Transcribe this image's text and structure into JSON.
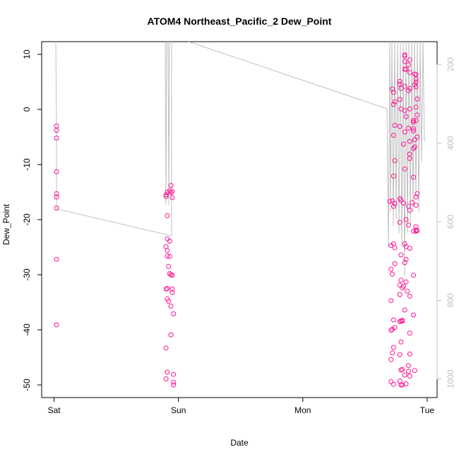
{
  "chart_data": {
    "type": "scatter",
    "title": "ATOM4 Northeast_Pacific_2 Dew_Point",
    "xlabel": "Date",
    "ylabel": "Dew_Point",
    "x_ticks": [
      {
        "label": "Sat",
        "value": 0
      },
      {
        "label": "Sun",
        "value": 1
      },
      {
        "label": "Mon",
        "value": 2
      },
      {
        "label": "Tue",
        "value": 3
      }
    ],
    "y_ticks": [
      10,
      0,
      -10,
      -20,
      -30,
      -40,
      -50
    ],
    "y_right_ticks": [
      200,
      400,
      600,
      800,
      1000
    ],
    "xlim": [
      -0.1,
      3.08
    ],
    "ylim": [
      -52.3,
      12.3
    ],
    "y_right_lim": [
      1047,
      142
    ],
    "point_color": "#ff1493",
    "line_color": "#c0c0c0",
    "grid": false,
    "series": [
      {
        "values": [
          [
            0.02,
            -3.0
          ],
          [
            0.02,
            -3.8
          ],
          [
            0.02,
            -5.2
          ],
          [
            0.02,
            -11.3
          ],
          [
            0.02,
            -15.3
          ],
          [
            0.02,
            -15.9
          ],
          [
            0.02,
            -17.9
          ],
          [
            0.02,
            -27.2
          ],
          [
            0.02,
            -39.1
          ],
          [
            0.9,
            -15.5
          ],
          [
            0.9,
            -15.8
          ],
          [
            0.91,
            -15.0
          ],
          [
            0.93,
            -14.8
          ],
          [
            0.94,
            -13.8
          ],
          [
            0.94,
            -15.1
          ],
          [
            0.95,
            -14.9
          ],
          [
            0.95,
            -16.0
          ],
          [
            0.91,
            -19.3
          ],
          [
            0.91,
            -23.5
          ],
          [
            0.9,
            -24.9
          ],
          [
            0.91,
            -25.6
          ],
          [
            0.93,
            -23.9
          ],
          [
            0.91,
            -26.6
          ],
          [
            0.93,
            -26.7
          ],
          [
            0.92,
            -28.5
          ],
          [
            0.93,
            -29.8
          ],
          [
            0.94,
            -30.0
          ],
          [
            0.95,
            -30.1
          ],
          [
            0.9,
            -32.6
          ],
          [
            0.91,
            -32.5
          ],
          [
            0.95,
            -32.6
          ],
          [
            0.95,
            -33.2
          ],
          [
            0.91,
            -34.4
          ],
          [
            0.92,
            -34.8
          ],
          [
            0.94,
            -35.7
          ],
          [
            0.96,
            -37.1
          ],
          [
            0.94,
            -40.9
          ],
          [
            0.9,
            -43.3
          ],
          [
            0.91,
            -47.7
          ],
          [
            0.96,
            -48.1
          ],
          [
            0.9,
            -48.9
          ],
          [
            0.96,
            -49.5
          ],
          [
            0.96,
            -50.0
          ],
          [
            2.72,
            3.7
          ],
          [
            2.73,
            3.1
          ],
          [
            2.74,
            1.4
          ],
          [
            2.73,
            0.9
          ],
          [
            2.74,
            -2.9
          ],
          [
            2.73,
            -4.7
          ],
          [
            2.74,
            -9.3
          ],
          [
            2.73,
            -12.1
          ],
          [
            2.72,
            -16.6
          ],
          [
            2.73,
            -17.6
          ],
          [
            2.74,
            -17.1
          ],
          [
            2.7,
            -16.7
          ],
          [
            2.71,
            -24.7
          ],
          [
            2.73,
            -24.4
          ],
          [
            2.74,
            -25.1
          ],
          [
            2.71,
            -29.0
          ],
          [
            2.72,
            -29.9
          ],
          [
            2.74,
            -28.0
          ],
          [
            2.71,
            -34.7
          ],
          [
            2.71,
            -40.1
          ],
          [
            2.72,
            -39.9
          ],
          [
            2.73,
            -38.2
          ],
          [
            2.74,
            -39.6
          ],
          [
            2.72,
            -44.2
          ],
          [
            2.73,
            -43.2
          ],
          [
            2.71,
            -45.4
          ],
          [
            2.71,
            -49.4
          ],
          [
            2.73,
            -49.9
          ],
          [
            2.78,
            5.1
          ],
          [
            2.78,
            4.6
          ],
          [
            2.79,
            3.8
          ],
          [
            2.78,
            1.8
          ],
          [
            2.79,
            0.1
          ],
          [
            2.78,
            -3.1
          ],
          [
            2.78,
            -16.2
          ],
          [
            2.79,
            -16.5
          ],
          [
            2.78,
            -20.5
          ],
          [
            2.79,
            -26.4
          ],
          [
            2.78,
            -31.9
          ],
          [
            2.79,
            -31.0
          ],
          [
            2.8,
            -32.4
          ],
          [
            2.78,
            -33.6
          ],
          [
            2.8,
            -38.3
          ],
          [
            2.79,
            -38.4
          ],
          [
            2.78,
            -38.5
          ],
          [
            2.8,
            -38.4
          ],
          [
            2.79,
            -42.2
          ],
          [
            2.78,
            -44.5
          ],
          [
            2.8,
            -47.2
          ],
          [
            2.79,
            -47.3
          ],
          [
            2.78,
            -49.3
          ],
          [
            2.79,
            -50.0
          ],
          [
            2.8,
            -50.0
          ],
          [
            2.82,
            9.9
          ],
          [
            2.82,
            9.7
          ],
          [
            2.82,
            8.7
          ],
          [
            2.82,
            7.3
          ],
          [
            2.82,
            4.2
          ],
          [
            2.83,
            7.3
          ],
          [
            2.82,
            -0.2
          ],
          [
            2.83,
            -1.3
          ],
          [
            2.82,
            -4.1
          ],
          [
            2.81,
            -6.3
          ],
          [
            2.82,
            -10.8
          ],
          [
            2.81,
            -17.0
          ],
          [
            2.83,
            -20.0
          ],
          [
            2.82,
            -24.4
          ],
          [
            2.83,
            -24.9
          ],
          [
            2.83,
            -27.2
          ],
          [
            2.82,
            -27.8
          ],
          [
            2.83,
            -31.3
          ],
          [
            2.81,
            -32.1
          ],
          [
            2.82,
            -36.4
          ],
          [
            2.84,
            -33.0
          ],
          [
            2.82,
            -48.2
          ],
          [
            2.83,
            -49.8
          ],
          [
            2.86,
            9.0
          ],
          [
            2.85,
            8.1
          ],
          [
            2.86,
            6.7
          ],
          [
            2.86,
            3.8
          ],
          [
            2.85,
            3.4
          ],
          [
            2.86,
            0.1
          ],
          [
            2.85,
            -3.4
          ],
          [
            2.86,
            -5.8
          ],
          [
            2.86,
            -8.1
          ],
          [
            2.86,
            -8.9
          ],
          [
            2.85,
            -17.6
          ],
          [
            2.86,
            -18.3
          ],
          [
            2.85,
            -21.0
          ],
          [
            2.86,
            -25.2
          ],
          [
            2.86,
            -33.9
          ],
          [
            2.86,
            -40.6
          ],
          [
            2.86,
            -44.4
          ],
          [
            2.85,
            -46.5
          ],
          [
            2.86,
            -48.4
          ],
          [
            2.85,
            -47.5
          ],
          [
            2.89,
            -2.0
          ],
          [
            2.89,
            -2.3
          ],
          [
            2.89,
            -3.5
          ],
          [
            2.89,
            -3.9
          ],
          [
            2.89,
            -7.1
          ],
          [
            2.9,
            -6.8
          ],
          [
            2.89,
            -12.3
          ],
          [
            2.88,
            -16.9
          ],
          [
            2.89,
            -22.1
          ],
          [
            2.89,
            -30.1
          ],
          [
            2.89,
            -37.3
          ],
          [
            2.9,
            -47.4
          ],
          [
            2.9,
            6.4
          ],
          [
            2.91,
            6.3
          ],
          [
            2.91,
            5.5
          ],
          [
            2.91,
            5.0
          ],
          [
            2.9,
            4.5
          ],
          [
            2.91,
            4.1
          ],
          [
            2.92,
            1.9
          ],
          [
            2.91,
            0.4
          ],
          [
            2.92,
            -1.0
          ],
          [
            2.91,
            -2.0
          ],
          [
            2.92,
            -5.0
          ],
          [
            2.9,
            -5.5
          ],
          [
            2.92,
            -15.3
          ],
          [
            2.91,
            -15.9
          ],
          [
            2.91,
            -17.4
          ],
          [
            2.91,
            -21.3
          ],
          [
            2.91,
            -21.9
          ],
          [
            2.91,
            -22.1
          ],
          [
            2.92,
            -22.0
          ]
        ]
      }
    ]
  }
}
